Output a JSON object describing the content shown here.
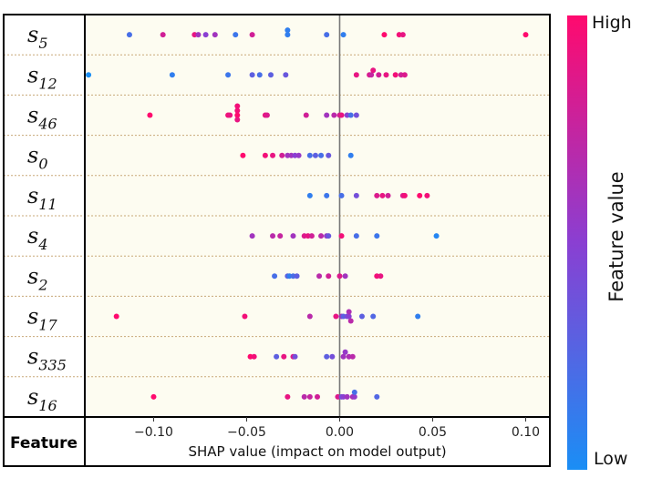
{
  "chart_data": {
    "type": "scatter",
    "subtype": "shap-beeswarm",
    "header_label": "Feature",
    "xlabel": "SHAP value (impact on model output)",
    "xlim": [
      -0.137,
      0.113
    ],
    "xticks": [
      -0.1,
      -0.05,
      0.0,
      0.05,
      0.1
    ],
    "xtick_labels": [
      "−0.10",
      "−0.05",
      "0.00",
      "0.05",
      "0.10"
    ],
    "zero_line": 0.0,
    "colorbar": {
      "title": "Feature value",
      "high_label": "High",
      "low_label": "Low",
      "high_color": "#ff0a6e",
      "low_color": "#1a8ef5"
    },
    "features": [
      {
        "base": "s",
        "sub": "5",
        "points": [
          [
            -0.113,
            0.2
          ],
          [
            -0.095,
            0.8
          ],
          [
            -0.078,
            0.9
          ],
          [
            -0.076,
            0.6
          ],
          [
            -0.072,
            0.5
          ],
          [
            -0.067,
            0.6
          ],
          [
            -0.056,
            0.15
          ],
          [
            -0.047,
            0.8
          ],
          [
            -0.028,
            0.1
          ],
          [
            -0.028,
            0.1
          ],
          [
            -0.007,
            0.2
          ],
          [
            0.002,
            0.1
          ],
          [
            0.024,
            1.0
          ],
          [
            0.032,
            0.95
          ],
          [
            0.034,
            0.9
          ],
          [
            0.1,
            1.0
          ]
        ]
      },
      {
        "base": "s",
        "sub": "12",
        "points": [
          [
            -0.135,
            0.0
          ],
          [
            -0.09,
            0.1
          ],
          [
            -0.06,
            0.15
          ],
          [
            -0.047,
            0.3
          ],
          [
            -0.043,
            0.2
          ],
          [
            -0.037,
            0.3
          ],
          [
            -0.029,
            0.35
          ],
          [
            0.009,
            0.9
          ],
          [
            0.016,
            0.85
          ],
          [
            0.017,
            0.75
          ],
          [
            0.018,
            0.9
          ],
          [
            0.021,
            0.8
          ],
          [
            0.025,
            0.9
          ],
          [
            0.03,
            0.95
          ],
          [
            0.033,
            0.8
          ],
          [
            0.035,
            0.85
          ]
        ]
      },
      {
        "base": "s",
        "sub": "46",
        "points": [
          [
            -0.102,
            1.0
          ],
          [
            -0.06,
            0.95
          ],
          [
            -0.059,
            0.9
          ],
          [
            -0.055,
            1.0
          ],
          [
            -0.055,
            0.95
          ],
          [
            -0.055,
            0.9
          ],
          [
            -0.055,
            0.95
          ],
          [
            -0.04,
            0.9
          ],
          [
            -0.039,
            0.85
          ],
          [
            -0.018,
            0.8
          ],
          [
            -0.007,
            0.6
          ],
          [
            -0.003,
            0.7
          ],
          [
            0.0,
            0.8
          ],
          [
            0.001,
            0.9
          ],
          [
            0.004,
            0.5
          ],
          [
            0.006,
            0.2
          ],
          [
            0.009,
            0.4
          ]
        ]
      },
      {
        "base": "s",
        "sub": "0",
        "points": [
          [
            -0.052,
            1.0
          ],
          [
            -0.04,
            0.95
          ],
          [
            -0.036,
            0.9
          ],
          [
            -0.031,
            0.8
          ],
          [
            -0.028,
            0.6
          ],
          [
            -0.026,
            0.6
          ],
          [
            -0.024,
            0.5
          ],
          [
            -0.022,
            0.55
          ],
          [
            -0.016,
            0.2
          ],
          [
            -0.013,
            0.3
          ],
          [
            -0.01,
            0.2
          ],
          [
            -0.006,
            0.35
          ],
          [
            0.006,
            0.1
          ]
        ]
      },
      {
        "base": "s",
        "sub": "11",
        "points": [
          [
            -0.016,
            0.1
          ],
          [
            -0.007,
            0.15
          ],
          [
            0.001,
            0.2
          ],
          [
            0.009,
            0.4
          ],
          [
            0.02,
            0.85
          ],
          [
            0.023,
            0.9
          ],
          [
            0.026,
            0.8
          ],
          [
            0.034,
            0.85
          ],
          [
            0.035,
            0.95
          ],
          [
            0.043,
            1.0
          ],
          [
            0.047,
            0.95
          ]
        ]
      },
      {
        "base": "s",
        "sub": "4",
        "points": [
          [
            -0.047,
            0.6
          ],
          [
            -0.036,
            0.7
          ],
          [
            -0.032,
            0.75
          ],
          [
            -0.025,
            0.6
          ],
          [
            -0.019,
            0.85
          ],
          [
            -0.017,
            0.9
          ],
          [
            -0.015,
            0.8
          ],
          [
            -0.01,
            0.7
          ],
          [
            -0.007,
            0.55
          ],
          [
            -0.006,
            0.35
          ],
          [
            0.001,
            0.95
          ],
          [
            0.009,
            0.2
          ],
          [
            0.02,
            0.15
          ],
          [
            0.052,
            0.05
          ]
        ]
      },
      {
        "base": "s",
        "sub": "2",
        "points": [
          [
            -0.035,
            0.2
          ],
          [
            -0.028,
            0.3
          ],
          [
            -0.027,
            0.1
          ],
          [
            -0.025,
            0.2
          ],
          [
            -0.023,
            0.3
          ],
          [
            -0.011,
            0.7
          ],
          [
            -0.006,
            0.8
          ],
          [
            0.0,
            0.85
          ],
          [
            0.003,
            0.6
          ],
          [
            0.02,
            0.95
          ],
          [
            0.022,
            0.9
          ]
        ]
      },
      {
        "base": "s",
        "sub": "17",
        "points": [
          [
            -0.12,
            1.0
          ],
          [
            -0.051,
            0.95
          ],
          [
            -0.016,
            0.7
          ],
          [
            -0.002,
            0.9
          ],
          [
            0.001,
            0.6
          ],
          [
            0.002,
            0.3
          ],
          [
            0.004,
            0.4
          ],
          [
            0.005,
            0.5
          ],
          [
            0.005,
            0.65
          ],
          [
            0.006,
            0.7
          ],
          [
            0.012,
            0.3
          ],
          [
            0.018,
            0.25
          ],
          [
            0.042,
            0.1
          ]
        ]
      },
      {
        "base": "s",
        "sub": "335",
        "points": [
          [
            -0.048,
            1.0
          ],
          [
            -0.046,
            0.95
          ],
          [
            -0.034,
            0.3
          ],
          [
            -0.03,
            0.9
          ],
          [
            -0.025,
            0.85
          ],
          [
            -0.024,
            0.4
          ],
          [
            -0.007,
            0.3
          ],
          [
            -0.004,
            0.4
          ],
          [
            0.002,
            0.6
          ],
          [
            0.003,
            0.55
          ],
          [
            0.005,
            0.65
          ],
          [
            0.007,
            0.7
          ]
        ]
      },
      {
        "base": "s",
        "sub": "16",
        "points": [
          [
            -0.1,
            1.0
          ],
          [
            -0.028,
            0.9
          ],
          [
            -0.019,
            0.7
          ],
          [
            -0.016,
            0.75
          ],
          [
            -0.012,
            0.8
          ],
          [
            -0.001,
            0.85
          ],
          [
            0.001,
            0.4
          ],
          [
            0.002,
            0.5
          ],
          [
            0.004,
            0.6
          ],
          [
            0.007,
            0.65
          ],
          [
            0.008,
            0.55
          ],
          [
            0.02,
            0.25
          ],
          [
            0.008,
            0.2
          ]
        ]
      }
    ]
  }
}
